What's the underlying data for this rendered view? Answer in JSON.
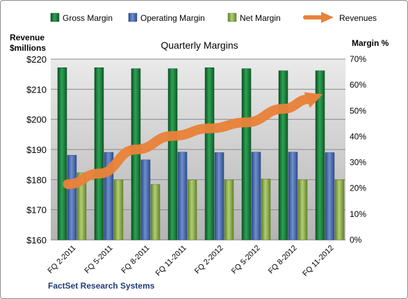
{
  "chart_data": {
    "type": "bar",
    "title": "Quarterly Margins",
    "source_label": "FactSet Research Systems",
    "left_axis": {
      "label_line1": "Revenue",
      "label_line2": "$millions",
      "min": 160,
      "max": 220,
      "step": 10,
      "ticks": [
        "$160",
        "$170",
        "$180",
        "$190",
        "$200",
        "$210",
        "$220"
      ]
    },
    "right_axis": {
      "label": "Margin %",
      "min": 0,
      "max": 70,
      "step": 10,
      "ticks": [
        "0%",
        "10%",
        "20%",
        "30%",
        "40%",
        "50%",
        "60%",
        "70%"
      ]
    },
    "categories": [
      "FQ 2-2011",
      "FQ 5-2011",
      "FQ 8-2011",
      "FQ 11-2011",
      "FQ 2-2012",
      "FQ 5-2012",
      "FQ 8-2012",
      "FQ 11-2012"
    ],
    "series": [
      {
        "name": "Gross Margin",
        "axis": "right",
        "kind": "bar",
        "color": "#1e7a3c",
        "values": [
          66.7,
          66.7,
          66.3,
          66.3,
          66.7,
          66.3,
          65.5,
          65.5
        ]
      },
      {
        "name": "Operating Margin",
        "axis": "right",
        "kind": "bar",
        "color": "#4a6cae",
        "values": [
          32.8,
          33.9,
          31.0,
          34.0,
          33.8,
          34.0,
          34.0,
          33.8
        ]
      },
      {
        "name": "Net Margin",
        "axis": "right",
        "kind": "bar",
        "color": "#8fb04e",
        "values": [
          26.0,
          23.3,
          21.5,
          23.2,
          23.3,
          23.6,
          23.3,
          23.3
        ]
      },
      {
        "name": "Revenues",
        "axis": "left",
        "kind": "arrow",
        "color": "#e8823a",
        "values": [
          178.5,
          182.0,
          190.0,
          194.5,
          197.0,
          199.0,
          203.5,
          208.0
        ]
      }
    ],
    "grid": true,
    "legend_position": "top"
  }
}
